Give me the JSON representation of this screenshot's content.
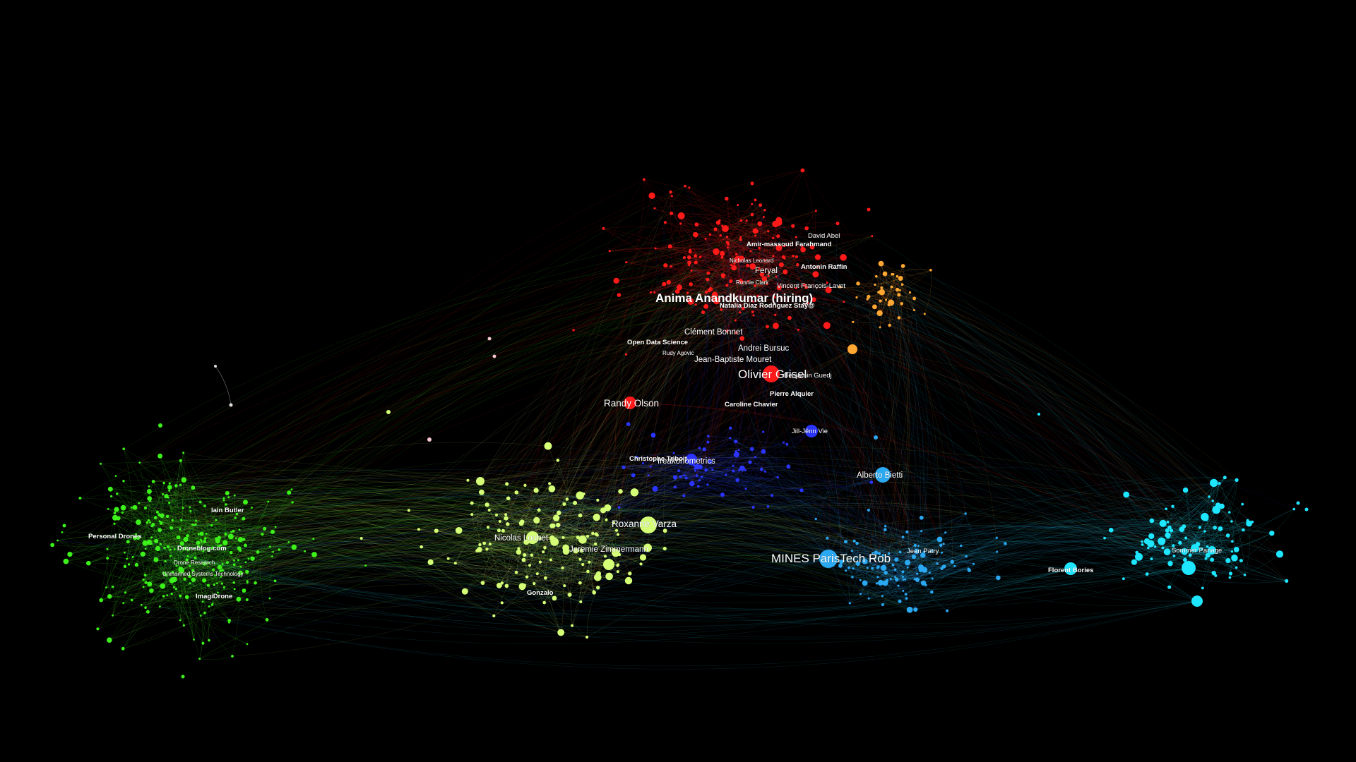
{
  "colors": {
    "background": "#000000",
    "red": "#ff1a1a",
    "orange": "#ffa733",
    "blue": "#2b35ff",
    "cyan": "#1ee6ff",
    "skyblue": "#2aa8f2",
    "lightgreen": "#d6ff78",
    "green": "#3cf21a",
    "pink": "#f5c8d2",
    "white": "#ffffff"
  },
  "clusters": [
    {
      "name": "red",
      "color": "#ff1a1a"
    },
    {
      "name": "orange",
      "color": "#ffa733"
    },
    {
      "name": "blue",
      "color": "#2b35ff"
    },
    {
      "name": "skyblue",
      "color": "#2aa8f2"
    },
    {
      "name": "cyan",
      "color": "#1ee6ff"
    },
    {
      "name": "lightgreen",
      "color": "#d6ff78"
    },
    {
      "name": "green",
      "color": "#3cf21a"
    }
  ],
  "labels": [
    {
      "text": "Anima Anandkumar (hiring)",
      "cluster": "red",
      "size": "xl",
      "bold": true
    },
    {
      "text": "Olivier Grisel",
      "cluster": "red",
      "size": "xl",
      "bold": false
    },
    {
      "text": "Randy Olson",
      "cluster": "red",
      "size": "l",
      "bold": false
    },
    {
      "text": "Clément Bonnet",
      "cluster": "red",
      "size": "m",
      "bold": false
    },
    {
      "text": "Feryal",
      "cluster": "red",
      "size": "m",
      "bold": false
    },
    {
      "text": "Jean-Baptiste Mouret",
      "cluster": "red",
      "size": "m",
      "bold": false
    },
    {
      "text": "Andrei Bursuc",
      "cluster": "red",
      "size": "m",
      "bold": false
    },
    {
      "text": "Vincent François-Lavet",
      "cluster": "red",
      "size": "s",
      "bold": false
    },
    {
      "text": "Natalia Diaz Rodriguez Stay@",
      "cluster": "red",
      "size": "s",
      "bold": true
    },
    {
      "text": "Amir-massoud Farahmand",
      "cluster": "red",
      "size": "s",
      "bold": true
    },
    {
      "text": "David Abel",
      "cluster": "red",
      "size": "s",
      "bold": false
    },
    {
      "text": "Antonin Raffin",
      "cluster": "red",
      "size": "s",
      "bold": true
    },
    {
      "text": "Open Data Science",
      "cluster": "red",
      "size": "s",
      "bold": true
    },
    {
      "text": "Caroline Chavier",
      "cluster": "red",
      "size": "s",
      "bold": true
    },
    {
      "text": "Pierre Alquier",
      "cluster": "red",
      "size": "s",
      "bold": true
    },
    {
      "text": "Benjamin Guedj",
      "cluster": "red",
      "size": "s",
      "bold": false
    },
    {
      "text": "Nicholas Leonard",
      "cluster": "red",
      "size": "xs",
      "bold": false
    },
    {
      "text": "Ronnie Clark",
      "cluster": "red",
      "size": "xs",
      "bold": false
    },
    {
      "text": "Rudy Agovic",
      "cluster": "red",
      "size": "xs",
      "bold": false
    },
    {
      "text": "Jill-Jênn Vie",
      "cluster": "blue",
      "size": "s",
      "bold": false
    },
    {
      "text": "freakonometrics",
      "cluster": "blue",
      "size": "m",
      "bold": false
    },
    {
      "text": "Christophe Triboit",
      "cluster": "blue",
      "size": "s",
      "bold": true
    },
    {
      "text": "Alberto Bietti",
      "cluster": "skyblue",
      "size": "m",
      "bold": false
    },
    {
      "text": "MINES ParisTech Rob",
      "cluster": "skyblue",
      "size": "xl",
      "bold": false
    },
    {
      "text": "Jean Patry",
      "cluster": "skyblue",
      "size": "s",
      "bold": false
    },
    {
      "text": "Florent Bories",
      "cluster": "cyan",
      "size": "s",
      "bold": true
    },
    {
      "text": "Sommer Panage",
      "cluster": "cyan",
      "size": "s",
      "bold": false
    },
    {
      "text": "Roxanne Varza",
      "cluster": "lightgreen",
      "size": "l",
      "bold": false
    },
    {
      "text": "Nicolas Loubet",
      "cluster": "lightgreen",
      "size": "m",
      "bold": false
    },
    {
      "text": "Jeremie Zimmermann",
      "cluster": "lightgreen",
      "size": "m",
      "bold": false
    },
    {
      "text": "Gonzalo",
      "cluster": "lightgreen",
      "size": "s",
      "bold": true
    },
    {
      "text": "Iain Butler",
      "cluster": "green",
      "size": "s",
      "bold": true
    },
    {
      "text": "Personal Drones",
      "cluster": "green",
      "size": "s",
      "bold": true
    },
    {
      "text": "Droneblog.com",
      "cluster": "green",
      "size": "s",
      "bold": true
    },
    {
      "text": "ImagiDrone",
      "cluster": "green",
      "size": "s",
      "bold": true
    },
    {
      "text": "Unmanned Systems Technology",
      "cluster": "green",
      "size": "xs",
      "bold": false
    },
    {
      "text": "Drone Research",
      "cluster": "green",
      "size": "xs",
      "bold": false
    }
  ]
}
